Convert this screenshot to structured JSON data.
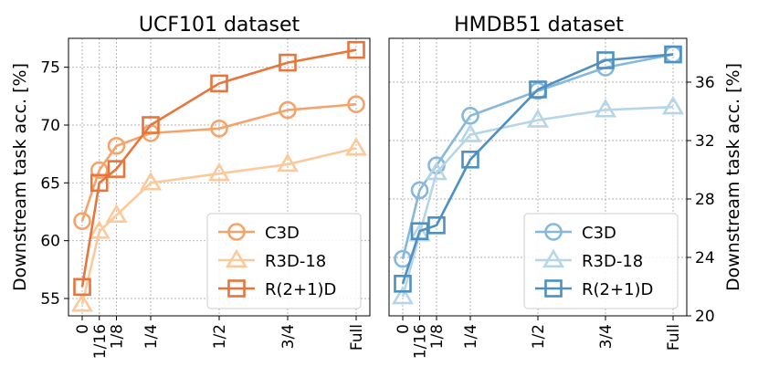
{
  "chart_data": [
    {
      "type": "line",
      "title": "UCF101 dataset",
      "xlabel": "",
      "ylabel": "Downstream task acc. [%]",
      "categories": [
        "0",
        "1/16",
        "1/8",
        "1/4",
        "1/2",
        "3/4",
        "Full"
      ],
      "x": [
        0,
        0.0625,
        0.125,
        0.25,
        0.5,
        0.75,
        1.0
      ],
      "ylim": [
        53.5,
        77.5
      ],
      "yticks": [
        55,
        60,
        65,
        70,
        75
      ],
      "ytick_labels": [
        "55",
        "60",
        "65",
        "70",
        "75"
      ],
      "y_axis_side": "left",
      "grid": true,
      "legend_position": "lower-right",
      "series": [
        {
          "name": "C3D",
          "marker": "circle",
          "color": "#F5A36A",
          "values": [
            61.7,
            66.1,
            68.2,
            69.3,
            69.7,
            71.3,
            71.8
          ]
        },
        {
          "name": "R3D-18",
          "marker": "triangle",
          "color": "#FCC99A",
          "values": [
            54.5,
            60.8,
            62.2,
            65.0,
            65.8,
            66.6,
            68.0
          ]
        },
        {
          "name": "R(2+1)D",
          "marker": "square",
          "color": "#E8753A",
          "values": [
            56.0,
            65.0,
            66.2,
            70.0,
            73.6,
            75.4,
            76.5
          ]
        }
      ]
    },
    {
      "type": "line",
      "title": "HMDB51 dataset",
      "xlabel": "",
      "ylabel": "Downstream task acc. [%]",
      "categories": [
        "0",
        "1/16",
        "1/8",
        "1/4",
        "1/2",
        "3/4",
        "Full"
      ],
      "x": [
        0,
        0.0625,
        0.125,
        0.25,
        0.5,
        0.75,
        1.0
      ],
      "ylim": [
        20,
        39
      ],
      "yticks": [
        20,
        24,
        28,
        32,
        36
      ],
      "ytick_labels": [
        "20",
        "24",
        "28",
        "32",
        "36"
      ],
      "y_axis_side": "right",
      "grid": true,
      "legend_position": "lower-right",
      "series": [
        {
          "name": "C3D",
          "marker": "circle",
          "color": "#86B8DB",
          "values": [
            23.9,
            28.6,
            30.3,
            33.7,
            35.4,
            37.0,
            37.9
          ]
        },
        {
          "name": "R3D-18",
          "marker": "triangle",
          "color": "#B6D5E7",
          "values": [
            21.3,
            25.6,
            29.8,
            32.4,
            33.4,
            34.1,
            34.3
          ]
        },
        {
          "name": "R(2+1)D",
          "marker": "square",
          "color": "#4E90C1",
          "values": [
            22.2,
            25.8,
            26.2,
            30.7,
            35.5,
            37.5,
            37.9
          ]
        }
      ]
    }
  ]
}
